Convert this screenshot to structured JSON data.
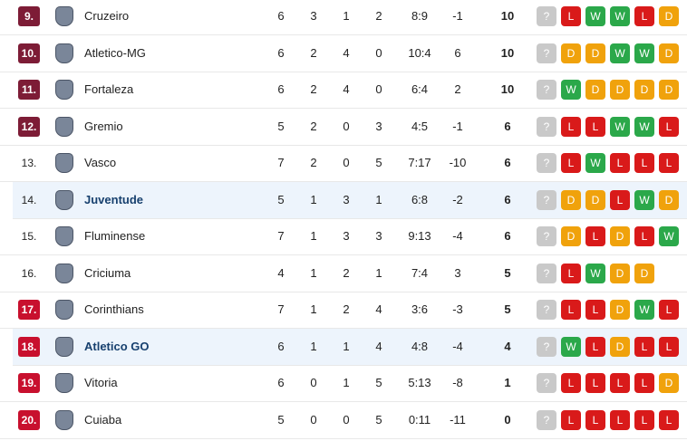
{
  "form_colors": {
    "?": "#c9c9c9",
    "W": "#2ba84a",
    "D": "#f0a20c",
    "L": "#d91a1a"
  },
  "table": {
    "rows": [
      {
        "rank": "9.",
        "rank_color": "#7d1c36",
        "team": "Cruzeiro",
        "highlight": false,
        "played": 6,
        "won": 3,
        "drawn": 1,
        "lost": 2,
        "goals": "8:9",
        "diff": -1,
        "points": 10,
        "form": [
          "?",
          "L",
          "W",
          "W",
          "L",
          "D"
        ]
      },
      {
        "rank": "10.",
        "rank_color": "#7d1c36",
        "team": "Atletico-MG",
        "highlight": false,
        "played": 6,
        "won": 2,
        "drawn": 4,
        "lost": 0,
        "goals": "10:4",
        "diff": 6,
        "points": 10,
        "form": [
          "?",
          "D",
          "D",
          "W",
          "W",
          "D"
        ]
      },
      {
        "rank": "11.",
        "rank_color": "#7d1c36",
        "team": "Fortaleza",
        "highlight": false,
        "played": 6,
        "won": 2,
        "drawn": 4,
        "lost": 0,
        "goals": "6:4",
        "diff": 2,
        "points": 10,
        "form": [
          "?",
          "W",
          "D",
          "D",
          "D",
          "D"
        ]
      },
      {
        "rank": "12.",
        "rank_color": "#7d1c36",
        "team": "Gremio",
        "highlight": false,
        "played": 5,
        "won": 2,
        "drawn": 0,
        "lost": 3,
        "goals": "4:5",
        "diff": -1,
        "points": 6,
        "form": [
          "?",
          "L",
          "L",
          "W",
          "W",
          "L"
        ]
      },
      {
        "rank": "13.",
        "rank_color": null,
        "team": "Vasco",
        "highlight": false,
        "played": 7,
        "won": 2,
        "drawn": 0,
        "lost": 5,
        "goals": "7:17",
        "diff": -10,
        "points": 6,
        "form": [
          "?",
          "L",
          "W",
          "L",
          "L",
          "L"
        ]
      },
      {
        "rank": "14.",
        "rank_color": null,
        "team": "Juventude",
        "highlight": true,
        "played": 5,
        "won": 1,
        "drawn": 3,
        "lost": 1,
        "goals": "6:8",
        "diff": -2,
        "points": 6,
        "form": [
          "?",
          "D",
          "D",
          "L",
          "W",
          "D"
        ]
      },
      {
        "rank": "15.",
        "rank_color": null,
        "team": "Fluminense",
        "highlight": false,
        "played": 7,
        "won": 1,
        "drawn": 3,
        "lost": 3,
        "goals": "9:13",
        "diff": -4,
        "points": 6,
        "form": [
          "?",
          "D",
          "L",
          "D",
          "L",
          "W"
        ]
      },
      {
        "rank": "16.",
        "rank_color": null,
        "team": "Criciuma",
        "highlight": false,
        "played": 4,
        "won": 1,
        "drawn": 2,
        "lost": 1,
        "goals": "7:4",
        "diff": 3,
        "points": 5,
        "form": [
          "?",
          "L",
          "W",
          "D",
          "D"
        ]
      },
      {
        "rank": "17.",
        "rank_color": "#c8102e",
        "team": "Corinthians",
        "highlight": false,
        "played": 7,
        "won": 1,
        "drawn": 2,
        "lost": 4,
        "goals": "3:6",
        "diff": -3,
        "points": 5,
        "form": [
          "?",
          "L",
          "L",
          "D",
          "W",
          "L"
        ]
      },
      {
        "rank": "18.",
        "rank_color": "#c8102e",
        "team": "Atletico GO",
        "highlight": true,
        "played": 6,
        "won": 1,
        "drawn": 1,
        "lost": 4,
        "goals": "4:8",
        "diff": -4,
        "points": 4,
        "form": [
          "?",
          "W",
          "L",
          "D",
          "L",
          "L"
        ]
      },
      {
        "rank": "19.",
        "rank_color": "#c8102e",
        "team": "Vitoria",
        "highlight": false,
        "played": 6,
        "won": 0,
        "drawn": 1,
        "lost": 5,
        "goals": "5:13",
        "diff": -8,
        "points": 1,
        "form": [
          "?",
          "L",
          "L",
          "L",
          "L",
          "D"
        ]
      },
      {
        "rank": "20.",
        "rank_color": "#c8102e",
        "team": "Cuiaba",
        "highlight": false,
        "played": 5,
        "won": 0,
        "drawn": 0,
        "lost": 5,
        "goals": "0:11",
        "diff": -11,
        "points": 0,
        "form": [
          "?",
          "L",
          "L",
          "L",
          "L",
          "L"
        ]
      }
    ]
  }
}
